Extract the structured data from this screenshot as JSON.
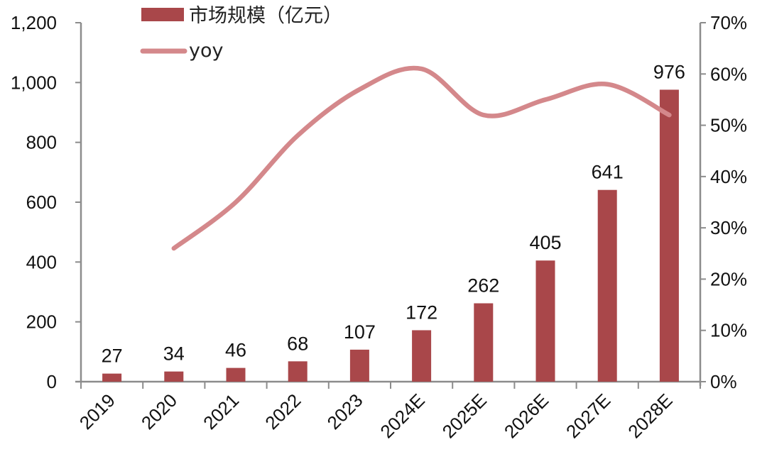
{
  "chart_data": {
    "type": "bar+line",
    "title": "",
    "categories": [
      "2019",
      "2020",
      "2021",
      "2022",
      "2023",
      "2024E",
      "2025E",
      "2026E",
      "2027E",
      "2028E"
    ],
    "series": [
      {
        "name": "市场规模（亿元）",
        "type": "bar",
        "axis": "left",
        "color": "#a9474a",
        "values": [
          27,
          34,
          46,
          68,
          107,
          172,
          262,
          405,
          641,
          976
        ],
        "labels": [
          "27",
          "34",
          "46",
          "68",
          "107",
          "172",
          "262",
          "405",
          "641",
          "976"
        ]
      },
      {
        "name": "yoy",
        "type": "line",
        "axis": "right",
        "color": "#d4888b",
        "values": [
          null,
          0.26,
          0.35,
          0.48,
          0.57,
          0.61,
          0.52,
          0.55,
          0.58,
          0.52
        ]
      }
    ],
    "left_axis": {
      "ylim": [
        0,
        1200
      ],
      "ticks": [
        0,
        200,
        400,
        600,
        800,
        1000,
        1200
      ],
      "tick_labels": [
        "0",
        "200",
        "400",
        "600",
        "800",
        "1,000",
        "1,200"
      ]
    },
    "right_axis": {
      "ylim": [
        0,
        0.7
      ],
      "ticks": [
        0,
        0.1,
        0.2,
        0.3,
        0.4,
        0.5,
        0.6,
        0.7
      ],
      "tick_labels": [
        "0%",
        "10%",
        "20%",
        "30%",
        "40%",
        "50%",
        "60%",
        "70%"
      ]
    },
    "xlabel": "",
    "ylabel": "",
    "grid": false,
    "legend": {
      "position": "top-left-inside",
      "entries": [
        "市场规模（亿元）",
        "yoy"
      ]
    }
  },
  "legend": {
    "bar_label": "市场规模（亿元）",
    "line_label": "yoy"
  }
}
